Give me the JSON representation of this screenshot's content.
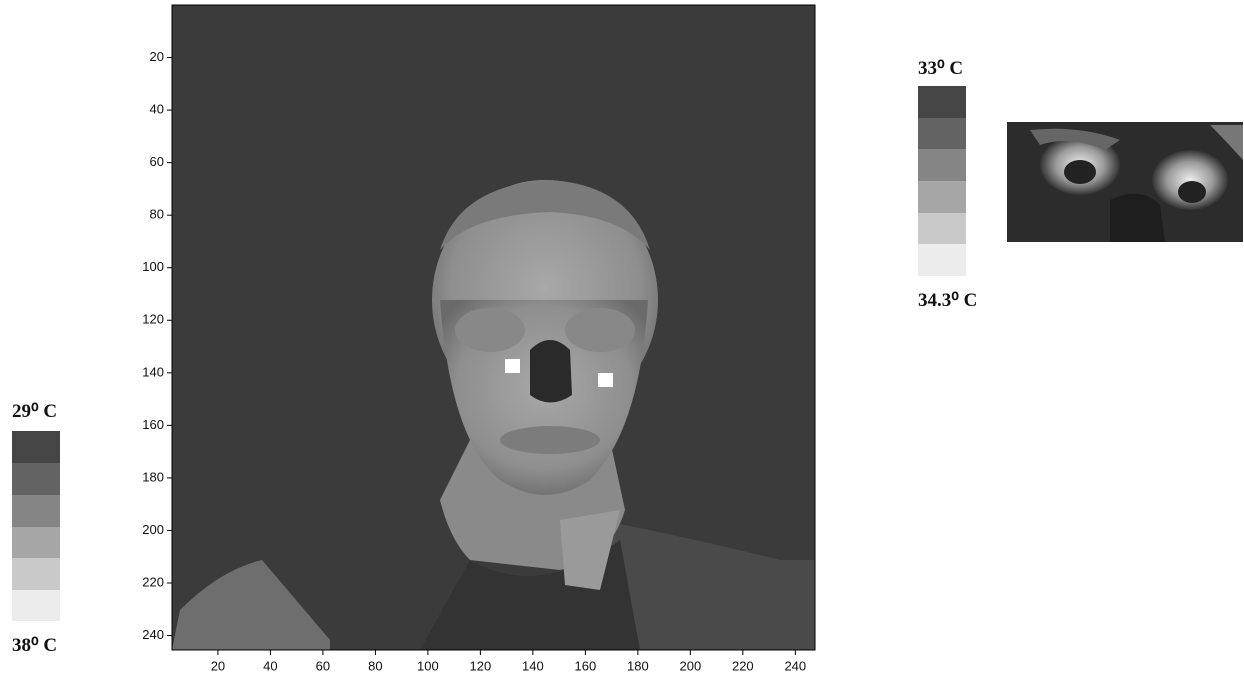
{
  "main_image": {
    "xlim": [
      2.5,
      247.5
    ],
    "ylim": [
      0,
      245.5
    ],
    "xticks": [
      20,
      40,
      60,
      80,
      100,
      120,
      140,
      160,
      180,
      200,
      220,
      240
    ],
    "yticks": [
      20,
      40,
      60,
      80,
      100,
      120,
      140,
      160,
      180,
      200,
      220,
      240
    ]
  },
  "scale_left": {
    "top_label": "29⁰ C",
    "bottom_label": "38⁰ C"
  },
  "scale_right": {
    "top_label": "33⁰ C",
    "bottom_label": "34.3⁰ C"
  }
}
